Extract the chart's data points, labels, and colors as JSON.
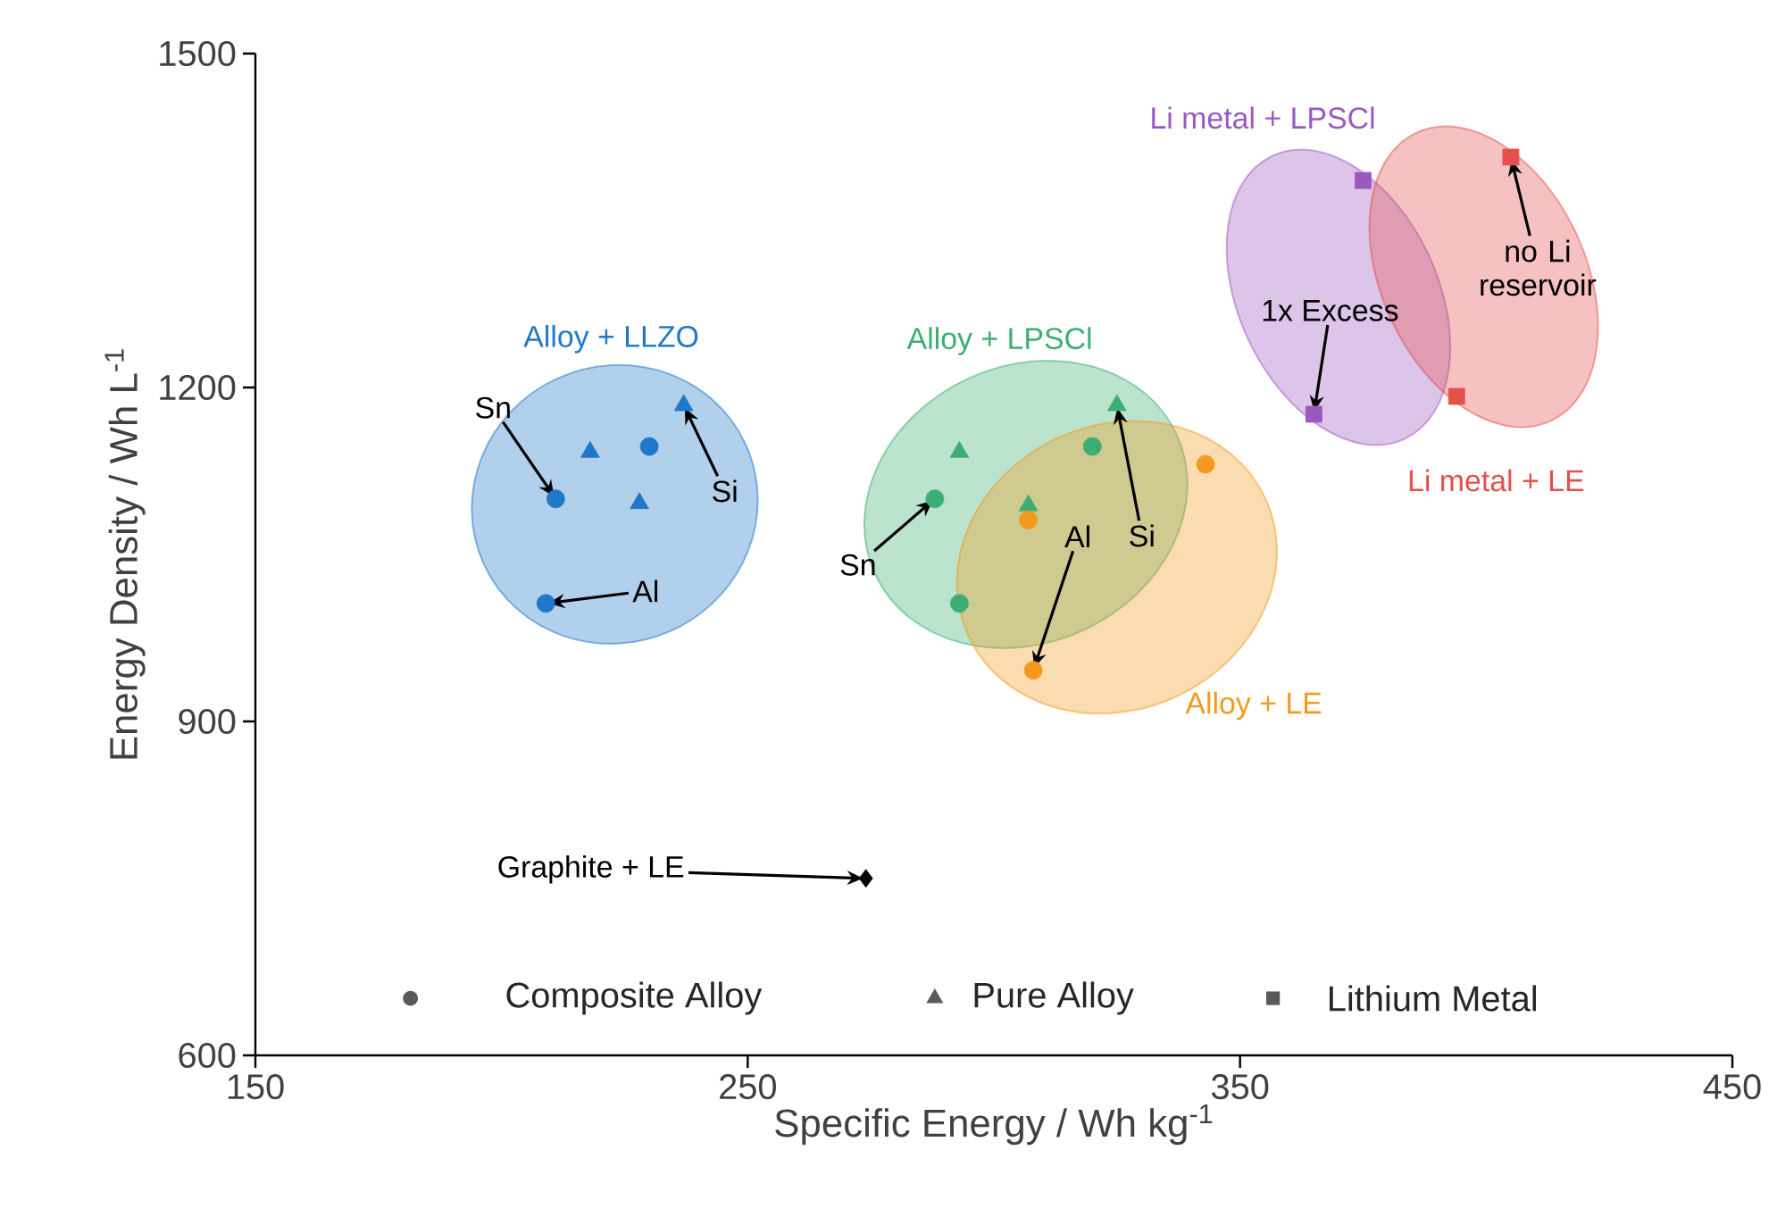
{
  "chart_data": {
    "type": "scatter",
    "xlabel": "Specific Energy / Wh kg$^{-1}$",
    "ylabel": "Energy Density / Wh L$^{-1}$",
    "xlim": [
      150,
      450
    ],
    "ylim": [
      600,
      1500
    ],
    "xticks": [
      150,
      250,
      350,
      450
    ],
    "yticks": [
      600,
      900,
      1200,
      1500
    ],
    "series": [
      {
        "name": "Alloy + LLZO",
        "color": "#1f78c8",
        "marker": "circle",
        "x": [
          211,
          230,
          209
        ],
        "values": [
          1100,
          1147,
          1006
        ]
      },
      {
        "color": "#1f78c8",
        "marker": "triangle",
        "x": [
          218,
          237,
          228
        ],
        "values": [
          1142,
          1184,
          1096
        ]
      },
      {
        "name": "Alloy + LPSCl",
        "color": "#3cae74",
        "marker": "circle",
        "x": [
          288,
          320,
          293
        ],
        "values": [
          1100,
          1147,
          1006
        ]
      },
      {
        "color": "#3cae74",
        "marker": "triangle",
        "x": [
          293,
          307,
          325
        ],
        "values": [
          1142,
          1094,
          1184
        ]
      },
      {
        "name": "Alloy + LE",
        "color": "#f39a1e",
        "marker": "circle",
        "x": [
          307,
          343,
          308
        ],
        "values": [
          1081,
          1131,
          946
        ]
      },
      {
        "name": "Li metal + LPSCl",
        "color": "#9b59c0",
        "marker": "square",
        "x": [
          375,
          365
        ],
        "values": [
          1386,
          1176
        ]
      },
      {
        "name": "Li metal + LE",
        "color": "#e4504c",
        "marker": "square",
        "x": [
          405,
          394
        ],
        "values": [
          1407,
          1192
        ]
      },
      {
        "color": "#000000",
        "marker": "diamond",
        "x": [
          274
        ],
        "values": [
          759
        ]
      }
    ],
    "annotations": [
      "Composite Alloy",
      "Pure Alloy",
      "Lithium Metal",
      {
        "text": "Sn",
        "x": 211,
        "y": 1100
      },
      {
        "text": "Si",
        "x": 237,
        "y": 1184
      },
      {
        "text": "Al",
        "x": 209,
        "y": 1006
      },
      {
        "text": "Sn",
        "x": 288,
        "y": 1100
      },
      {
        "text": "Al",
        "x": 308,
        "y": 946
      },
      {
        "text": "Si",
        "x": 325,
        "y": 1184
      },
      {
        "text": "Graphite + LE",
        "x": 274,
        "y": 759
      },
      {
        "text": "no Li reservoir",
        "x": 405,
        "y": 1407
      },
      {
        "text": "1x Excess",
        "x": 365,
        "y": 1176
      }
    ]
  }
}
